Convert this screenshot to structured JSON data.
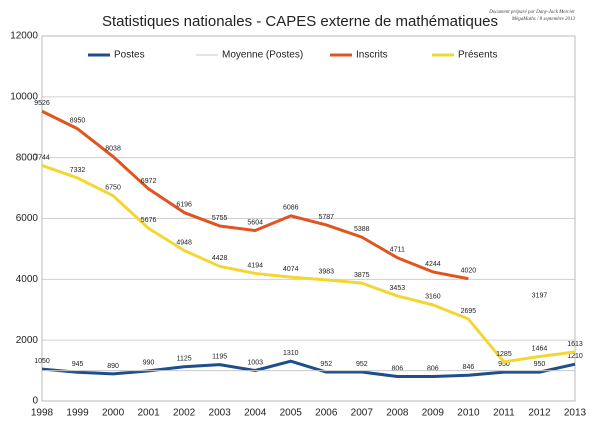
{
  "chart_data": {
    "type": "line",
    "title": "Statistiques nationales - CAPES externe de mathématiques",
    "source": [
      "Document préparé par Dany-Jack Mercier",
      "MégaMaths / 8 septembre 2013"
    ],
    "categories": [
      "1998",
      "1999",
      "2000",
      "2001",
      "2002",
      "2003",
      "2004",
      "2005",
      "2006",
      "2007",
      "2008",
      "2009",
      "2010",
      "2011",
      "2012",
      "2013"
    ],
    "series": [
      {
        "name": "Postes",
        "color": "#1f4e8c",
        "width": 3,
        "data_labels": true,
        "values": [
          1050,
          945,
          890,
          990,
          1125,
          1195,
          1003,
          1310,
          952,
          952,
          806,
          806,
          846,
          950,
          950,
          1210
        ]
      },
      {
        "name": "Moyenne (Postes)",
        "color": "#c8c8c8",
        "width": 1,
        "data_labels": false,
        "values": [
          999,
          999,
          999,
          999,
          999,
          999,
          999,
          999,
          999,
          999,
          999,
          999,
          999,
          999,
          999,
          999
        ]
      },
      {
        "name": "Inscrits",
        "color": "#e2541f",
        "width": 3,
        "data_labels": true,
        "values": [
          9526,
          8950,
          8038,
          6972,
          6196,
          5755,
          5604,
          6086,
          5787,
          5388,
          4711,
          4244,
          4020,
          null,
          3197,
          null
        ]
      },
      {
        "name": "Présents",
        "color": "#f4d633",
        "width": 3,
        "data_labels": true,
        "values": [
          7744,
          7332,
          6750,
          5676,
          4948,
          4428,
          4194,
          4074,
          3983,
          3875,
          3453,
          3160,
          2695,
          1285,
          1464,
          1613
        ]
      }
    ],
    "ylim": [
      0,
      12000
    ],
    "yticks": [
      0,
      2000,
      4000,
      6000,
      8000,
      10000,
      12000
    ],
    "grid": true,
    "legend": "top"
  }
}
